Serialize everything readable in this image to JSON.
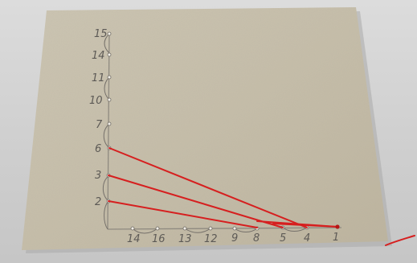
{
  "image": {
    "description_colors": {
      "background": "#d3d3d3",
      "cardboard": "#c7bfac",
      "thread": "#d61f1f",
      "pencil": "#5d5a56"
    },
    "vertical_axis_labels": [
      "15",
      "14",
      "11",
      "10",
      "7",
      "6",
      "3",
      "2"
    ],
    "horizontal_axis_labels": [
      "14",
      "16",
      "13",
      "12",
      "9",
      "8",
      "5",
      "4",
      "1"
    ]
  }
}
